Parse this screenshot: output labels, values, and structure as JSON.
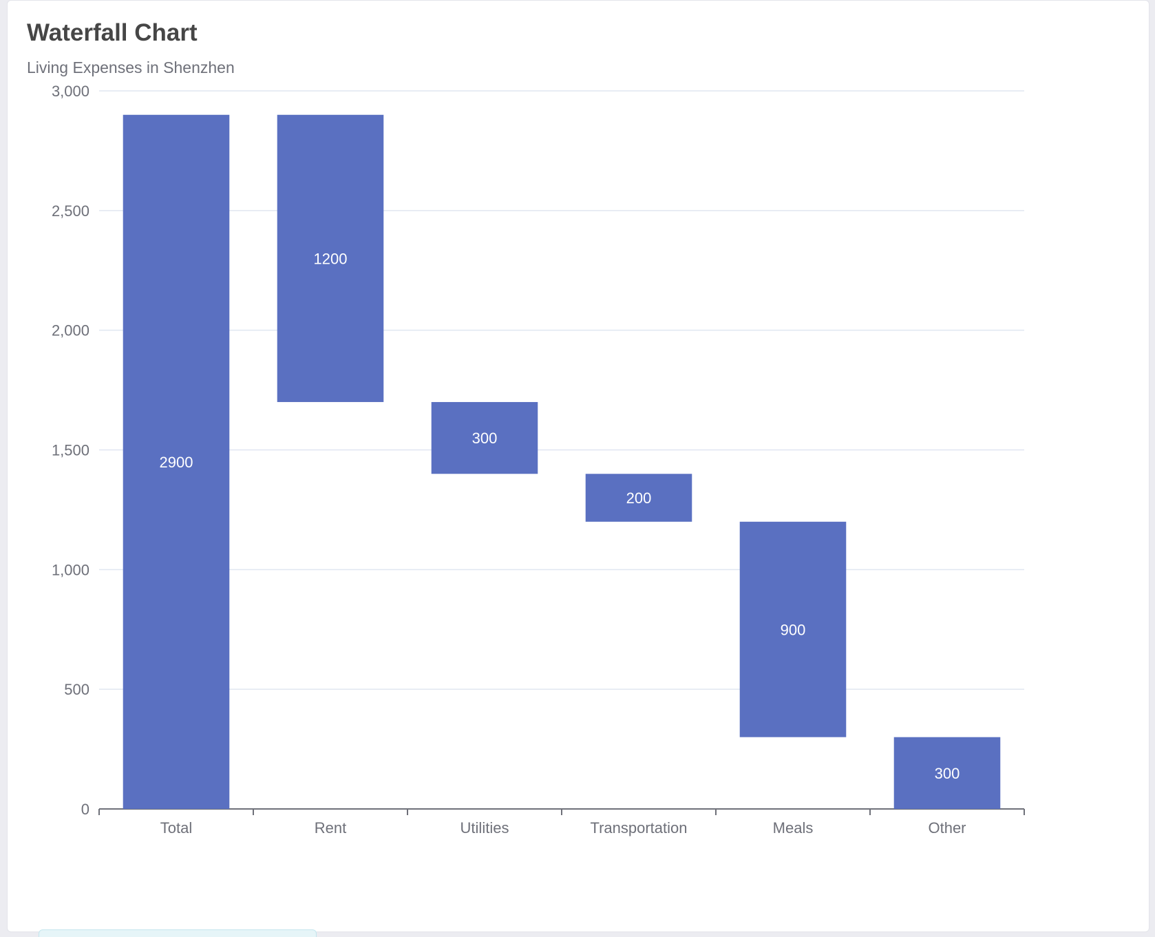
{
  "chart_data": {
    "type": "bar",
    "variant": "waterfall",
    "title": "Waterfall Chart",
    "subtitle": "Living Expenses in Shenzhen",
    "categories": [
      "Total",
      "Rent",
      "Utilities",
      "Transportation",
      "Meals",
      "Other"
    ],
    "values": [
      2900,
      1200,
      300,
      200,
      900,
      300
    ],
    "bases": [
      0,
      1700,
      1400,
      1200,
      300,
      0
    ],
    "data_labels": [
      "2900",
      "1200",
      "300",
      "200",
      "900",
      "300"
    ],
    "ylim": [
      0,
      3000
    ],
    "yticks": [
      0,
      500,
      1000,
      1500,
      2000,
      2500,
      3000
    ],
    "ytick_labels": [
      "0",
      "500",
      "1,000",
      "1,500",
      "2,000",
      "2,500",
      "3,000"
    ],
    "xlabel": "",
    "ylabel": "",
    "grid": true,
    "colors": {
      "bar": "#5a70c1",
      "grid": "#e0e6f1",
      "axis": "#6e7079",
      "label": "#ffffff"
    }
  }
}
